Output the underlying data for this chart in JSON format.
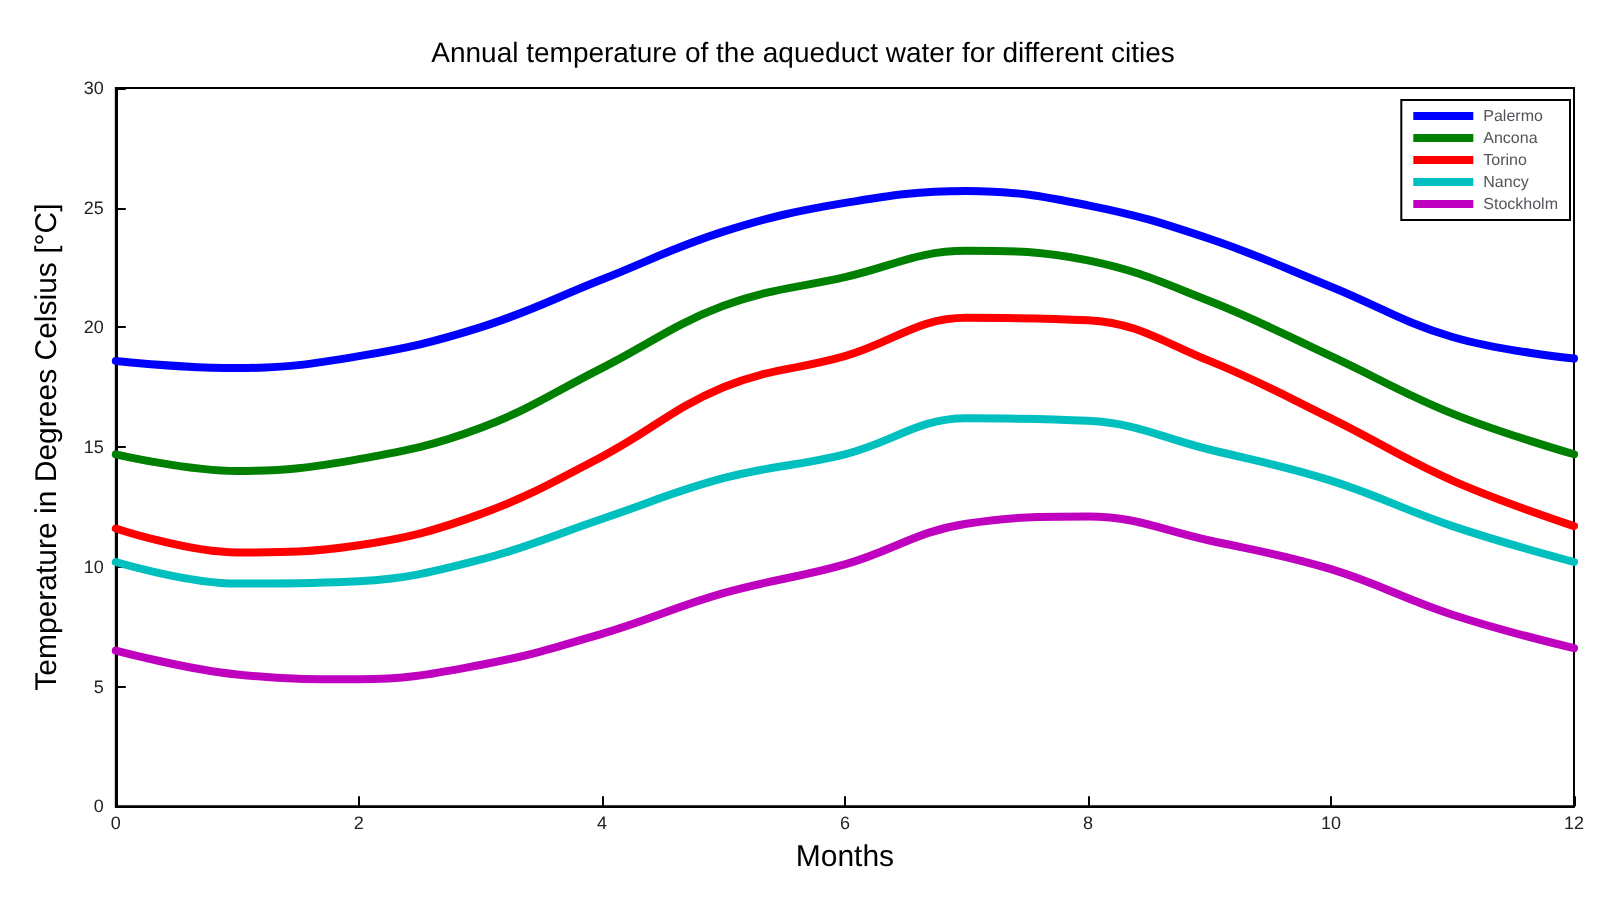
{
  "chart_data": {
    "type": "line",
    "title": "Annual temperature of the aqueduct water for different cities",
    "xlabel": "Months",
    "ylabel": "Temperature in Degrees Celsius [°C]",
    "x": [
      0,
      1,
      2,
      3,
      4,
      5,
      6,
      7,
      8,
      9,
      10,
      11,
      12
    ],
    "series": [
      {
        "name": "Palermo",
        "color": "#0000ff",
        "values": [
          18.6,
          18.3,
          18.8,
          20.0,
          22.0,
          24.0,
          25.2,
          25.7,
          25.1,
          23.7,
          21.7,
          19.6,
          18.7
        ]
      },
      {
        "name": "Ancona",
        "color": "#008000",
        "values": [
          14.7,
          14.0,
          14.5,
          15.8,
          18.3,
          20.9,
          22.1,
          23.2,
          22.8,
          21.1,
          18.8,
          16.4,
          14.7
        ]
      },
      {
        "name": "Torino",
        "color": "#ff0000",
        "values": [
          11.6,
          10.6,
          10.9,
          12.2,
          14.6,
          17.5,
          18.8,
          20.4,
          20.3,
          18.6,
          16.2,
          13.6,
          11.7
        ]
      },
      {
        "name": "Nancy",
        "color": "#00bfbf",
        "values": [
          10.2,
          9.3,
          9.4,
          10.3,
          12.0,
          13.7,
          14.7,
          16.2,
          16.1,
          14.9,
          13.6,
          11.7,
          10.2
        ]
      },
      {
        "name": "Stockholm",
        "color": "#bf00bf",
        "values": [
          6.5,
          5.5,
          5.3,
          5.9,
          7.2,
          8.9,
          10.1,
          11.8,
          12.1,
          11.1,
          9.9,
          8.0,
          6.6
        ]
      }
    ],
    "xlim": [
      0,
      12
    ],
    "xticks": [
      0,
      2,
      4,
      6,
      8,
      10,
      12
    ],
    "ylim": [
      0,
      30
    ],
    "yticks": [
      0,
      5,
      10,
      15,
      20,
      25,
      30
    ],
    "grid": false,
    "legend": "top right",
    "marker": "none",
    "line_style": "solid"
  }
}
